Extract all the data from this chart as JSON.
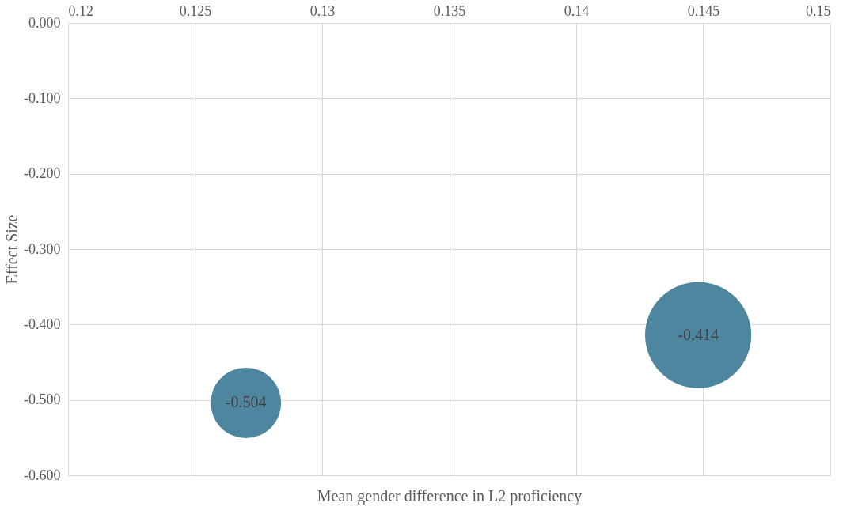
{
  "chart_data": {
    "type": "bubble",
    "xlabel": "Mean gender difference in L2 proficiency",
    "ylabel": "Effect Size",
    "x": [
      0.127,
      0.1448
    ],
    "series": [
      {
        "color": "#4e86a0",
        "values": [
          -0.504,
          -0.414
        ],
        "sizes": [
          0.44,
          1
        ]
      }
    ],
    "xlim": [
      0.12,
      0.15
    ],
    "xticks": [
      0.12,
      0.125,
      0.13,
      0.135,
      0.14,
      0.145,
      0.15
    ],
    "ylim": [
      -0.6,
      0.0
    ],
    "yticks": [
      {
        "value": 0.0,
        "label": "0.000"
      },
      {
        "value": -0.1,
        "label": "-0.100"
      },
      {
        "value": -0.2,
        "label": "-0.200"
      },
      {
        "value": -0.3,
        "label": "-0.300"
      },
      {
        "value": -0.4,
        "label": "-0.400"
      },
      {
        "value": -0.5,
        "label": "-0.500"
      },
      {
        "value": -0.6,
        "label": "-0.600"
      }
    ],
    "data_labels": true,
    "grid": true
  }
}
